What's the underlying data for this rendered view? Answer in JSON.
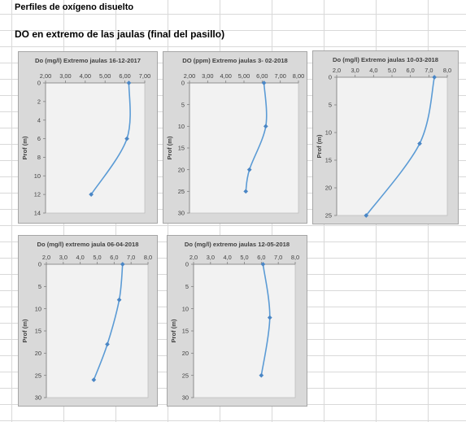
{
  "sheet": {
    "title": "Perfiles de oxígeno disuelto",
    "subtitle": "DO en extremo de las jaulas (final del pasillo)"
  },
  "chart_data": [
    {
      "type": "line",
      "title": "Do (mg/l) Extremo jaulas 16-12-2017",
      "ylabel": "Prof (m)",
      "xlim": [
        2,
        7
      ],
      "xticks": [
        2,
        3,
        4,
        5,
        6,
        7
      ],
      "xtick_labels": [
        "2,00",
        "3,00",
        "4,00",
        "5,00",
        "6,00",
        "7,00"
      ],
      "ylim": [
        0,
        14
      ],
      "yticks": [
        0,
        2,
        4,
        6,
        8,
        10,
        12,
        14
      ],
      "ytick_labels": [
        "0",
        "2",
        "4",
        "6",
        "8",
        "10",
        "12",
        "14"
      ],
      "series": [
        {
          "x": [
            6.2,
            6.1,
            4.3
          ],
          "y": [
            0,
            6,
            12
          ]
        }
      ]
    },
    {
      "type": "line",
      "title": "DO (ppm) Extremo jaulas 3- 02-2018",
      "ylabel": "Prof (m)",
      "xlim": [
        2,
        8
      ],
      "xticks": [
        2,
        3,
        4,
        5,
        6,
        7,
        8
      ],
      "xtick_labels": [
        "2,00",
        "3,00",
        "4,00",
        "5,00",
        "6,00",
        "7,00",
        "8,00"
      ],
      "ylim": [
        0,
        30
      ],
      "yticks": [
        0,
        5,
        10,
        15,
        20,
        25,
        30
      ],
      "ytick_labels": [
        "0",
        "5",
        "10",
        "15",
        "20",
        "25",
        "30"
      ],
      "series": [
        {
          "x": [
            6.1,
            6.2,
            5.3,
            5.1
          ],
          "y": [
            0,
            10,
            20,
            25
          ]
        }
      ]
    },
    {
      "type": "line",
      "title": "Do (mg/l) Extremo jaulas 10-03-2018",
      "ylabel": "Prof (m)",
      "xlim": [
        2,
        8
      ],
      "xticks": [
        2,
        3,
        4,
        5,
        6,
        7,
        8
      ],
      "xtick_labels": [
        "2,0",
        "3,0",
        "4,0",
        "5,0",
        "6,0",
        "7,0",
        "8,0"
      ],
      "ylim": [
        0,
        25
      ],
      "yticks": [
        0,
        5,
        10,
        15,
        20,
        25
      ],
      "ytick_labels": [
        "0",
        "5",
        "10",
        "15",
        "20",
        "25"
      ],
      "series": [
        {
          "x": [
            7.3,
            6.5,
            3.6
          ],
          "y": [
            0,
            12,
            25
          ]
        }
      ]
    },
    {
      "type": "line",
      "title": "Do (mg/l) extremo jaula 06-04-2018",
      "ylabel": "Prof (m)",
      "xlim": [
        2,
        8
      ],
      "xticks": [
        2,
        3,
        4,
        5,
        6,
        7,
        8
      ],
      "xtick_labels": [
        "2,0",
        "3,0",
        "4,0",
        "5,0",
        "6,0",
        "7,0",
        "8,0"
      ],
      "ylim": [
        0,
        30
      ],
      "yticks": [
        0,
        5,
        10,
        15,
        20,
        25,
        30
      ],
      "ytick_labels": [
        "0",
        "5",
        "10",
        "15",
        "20",
        "25",
        "30"
      ],
      "series": [
        {
          "x": [
            6.5,
            6.3,
            5.6,
            4.8
          ],
          "y": [
            0,
            8,
            18,
            26
          ]
        }
      ]
    },
    {
      "type": "line",
      "title": "Do (mg/l) extremo jaulas 12-05-2018",
      "ylabel": "Prof (m)",
      "xlim": [
        2,
        8
      ],
      "xticks": [
        2,
        3,
        4,
        5,
        6,
        7,
        8
      ],
      "xtick_labels": [
        "2,0",
        "3,0",
        "4,0",
        "5,0",
        "6,0",
        "7,0",
        "8,0"
      ],
      "ylim": [
        0,
        30
      ],
      "yticks": [
        0,
        5,
        10,
        15,
        20,
        25,
        30
      ],
      "ytick_labels": [
        "0",
        "5",
        "10",
        "15",
        "20",
        "25",
        "30"
      ],
      "series": [
        {
          "x": [
            6.1,
            6.5,
            6.0
          ],
          "y": [
            0,
            12,
            25
          ]
        }
      ]
    }
  ],
  "colors": {
    "chart_frame": "#d9d9d9",
    "plot_area": "#f2f2f2",
    "series_line": "#5b9bd5",
    "marker": "#4a86c5",
    "cell_grid": "#d9d9d9"
  }
}
